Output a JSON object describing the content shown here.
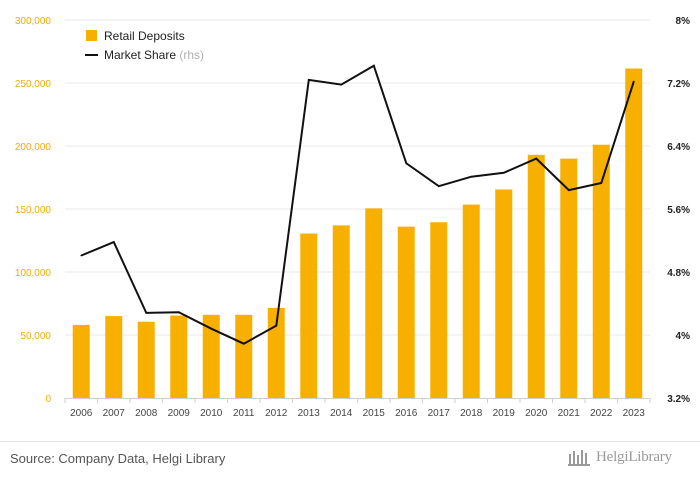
{
  "chart_data": {
    "type": "bar+line",
    "categories": [
      "2006",
      "2007",
      "2008",
      "2009",
      "2010",
      "2011",
      "2012",
      "2013",
      "2014",
      "2015",
      "2016",
      "2017",
      "2018",
      "2019",
      "2020",
      "2021",
      "2022",
      "2023"
    ],
    "series": [
      {
        "name": "Retail Deposits",
        "type": "bar",
        "axis": "left",
        "values": [
          58000,
          65000,
          60500,
          65500,
          66000,
          66000,
          71500,
          130500,
          137000,
          150500,
          136000,
          139500,
          153500,
          165500,
          193000,
          190000,
          201000,
          261500
        ]
      },
      {
        "name": "Market Share",
        "type": "line",
        "axis": "right",
        "values": [
          5.01,
          5.18,
          4.28,
          4.29,
          4.08,
          3.89,
          4.12,
          7.24,
          7.18,
          7.42,
          6.18,
          5.89,
          6.01,
          6.06,
          6.24,
          5.84,
          5.93,
          7.22
        ]
      }
    ],
    "y_left": {
      "ylim": [
        0,
        300000
      ],
      "tick_labels": [
        "0",
        "50,000",
        "100,000",
        "150,000",
        "200,000",
        "250,000",
        "300,000"
      ]
    },
    "y_right": {
      "ylim": [
        3.2,
        8.0
      ],
      "tick_labels": [
        "3.2%",
        "4%",
        "4.8%",
        "5.6%",
        "6.4%",
        "7.2%",
        "8%"
      ]
    },
    "legend": {
      "position": "top-left",
      "items": [
        {
          "label": "Retail Deposits",
          "note": ""
        },
        {
          "label": "Market Share",
          "note": "(rhs)"
        }
      ]
    },
    "colors": {
      "bar": "#f7b000",
      "line": "#111111",
      "grid": "#e9e9e9",
      "left_tick": "#f0ad00"
    },
    "grid": true
  },
  "footer": {
    "source": "Source: Company Data, Helgi Library",
    "brand": "HelgiLibrary"
  }
}
